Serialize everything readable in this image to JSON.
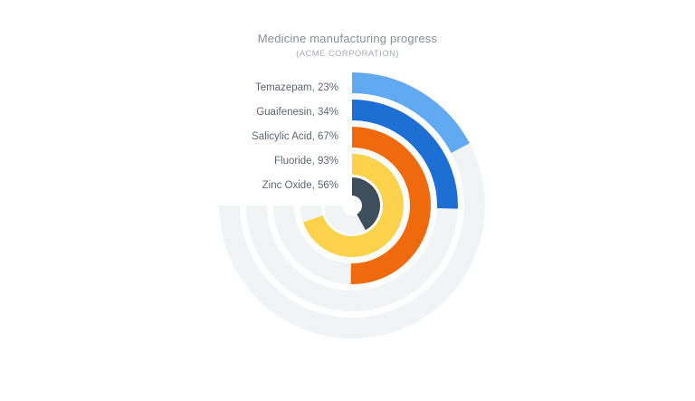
{
  "page": {
    "background_color": "#ffffff"
  },
  "chart_data": {
    "type": "radial-bar",
    "title": "Medicine manufacturing progress",
    "subtitle": "(ACME CORPORATION)",
    "categories": [
      "Temazepam",
      "Guaifenesin",
      "Salicylic Acid",
      "Fluoride",
      "Zinc Oxide"
    ],
    "values": [
      23,
      34,
      67,
      93,
      56
    ],
    "unit": "%",
    "labels": [
      "Temazepam, 23%",
      "Guaifenesin, 34%",
      "Salicylic Acid, 67%",
      "Fluoride, 93%",
      "Zinc Oxide, 56%"
    ],
    "series_colors": [
      "#61A9F1",
      "#1D6FD3",
      "#EF6A0C",
      "#FBD24B",
      "#3F4E5B"
    ],
    "track_color": "#F2F3F5",
    "title_color": "#8A8F95",
    "subtitle_color": "#A7ABAF",
    "label_color": "#5C6773",
    "scale": {
      "min": 0,
      "max": 100,
      "max_angle_deg": 270,
      "start": "top",
      "direction": "clockwise"
    },
    "legend_position": "upper-left-quadrant",
    "grid": false
  }
}
